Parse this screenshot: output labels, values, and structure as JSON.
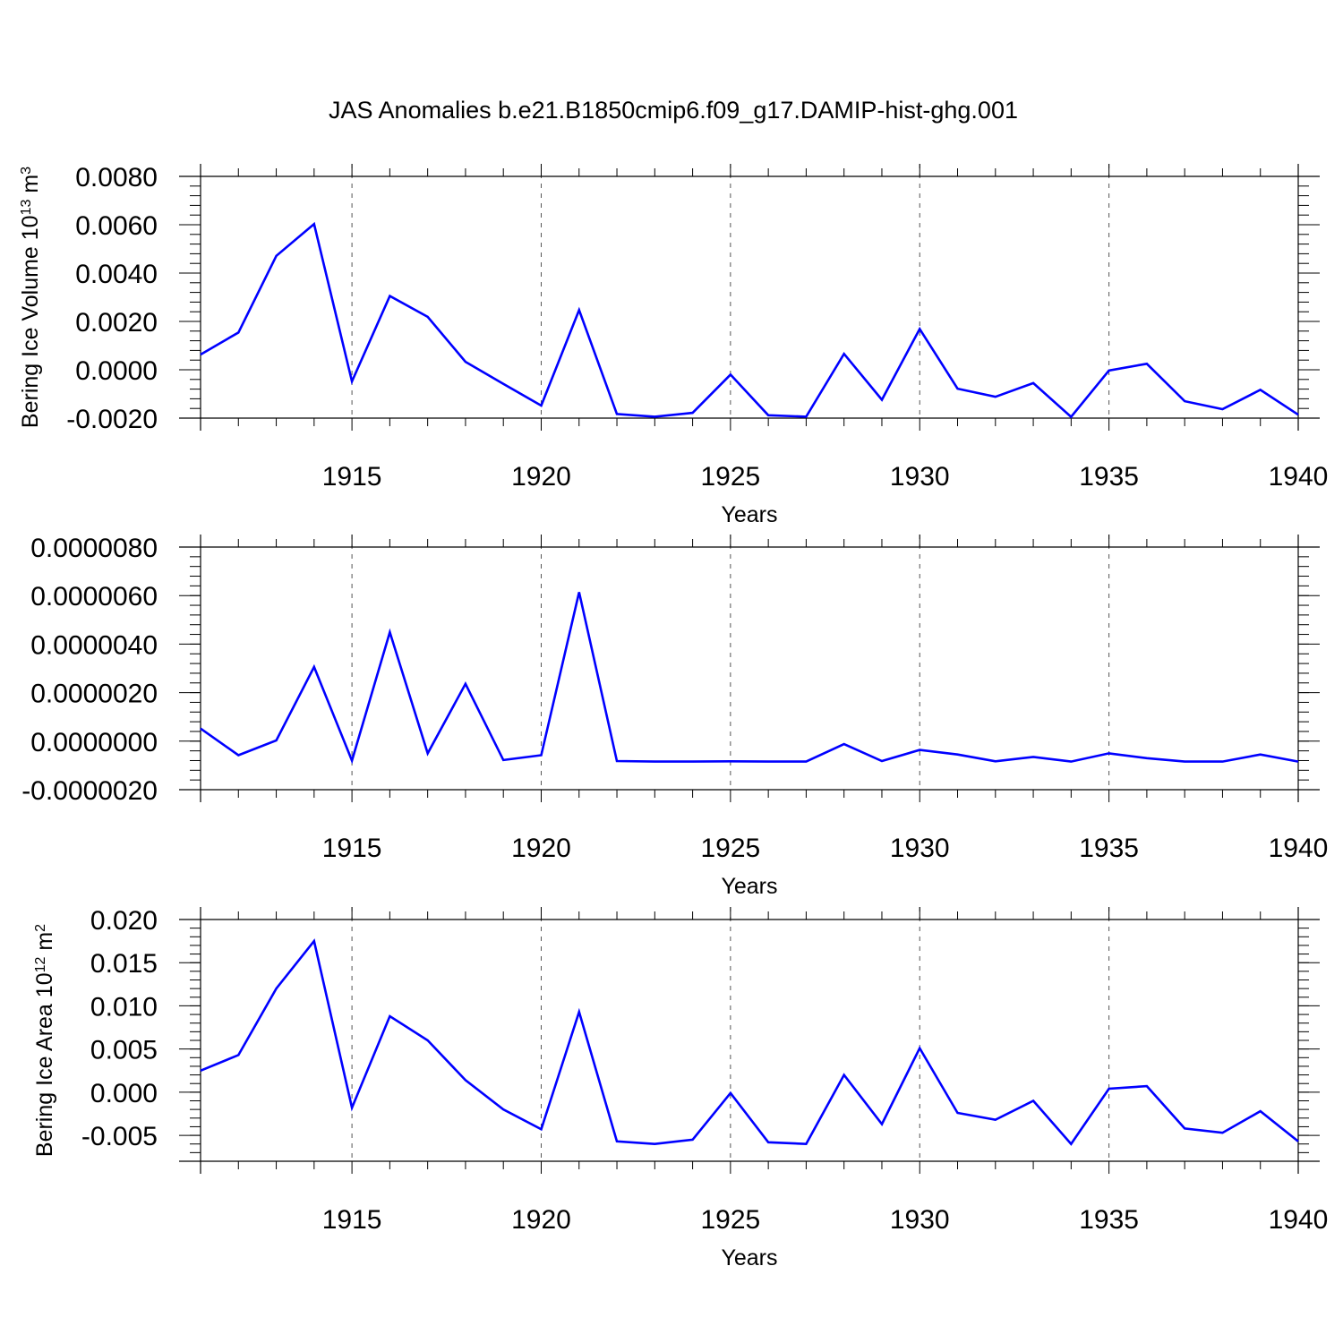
{
  "title": "JAS Anomalies b.e21.B1850cmip6.f09_g17.DAMIP-hist-ghg.001",
  "colors": {
    "line": "#0000ff",
    "grid": "#555555",
    "axes": "#000000"
  },
  "chart_data": [
    {
      "type": "line",
      "ylabel": "Bering Ice Volume 10",
      "ylabel_sup": "13",
      "ylabel_unit": " m",
      "ylabel_unit_sup": "3",
      "xlabel": "Years",
      "xlim": [
        1911,
        1940
      ],
      "ylim": [
        -0.002,
        0.008
      ],
      "xticks": [
        1915,
        1920,
        1925,
        1930,
        1935,
        1940
      ],
      "xtick_labels": [
        "1915",
        "1920",
        "1925",
        "1930",
        "1935",
        "1940"
      ],
      "yticks": [
        -0.002,
        0,
        0.002,
        0.004,
        0.006,
        0.008
      ],
      "ytick_labels": [
        "-0.0020",
        "0.0000",
        "0.0020",
        "0.0040",
        "0.0060",
        "0.0080"
      ],
      "grid": "vertical dashed at major x ticks",
      "x": [
        1911,
        1912,
        1913,
        1914,
        1915,
        1916,
        1917,
        1918,
        1919,
        1920,
        1921,
        1922,
        1923,
        1924,
        1925,
        1926,
        1927,
        1928,
        1929,
        1930,
        1931,
        1932,
        1933,
        1934,
        1935,
        1936,
        1937,
        1938,
        1939,
        1940
      ],
      "y": [
        0.00063,
        0.00154,
        0.00471,
        0.00603,
        -0.00048,
        0.00305,
        0.00219,
        0.00033,
        -0.00058,
        -0.00148,
        0.00247,
        -0.00183,
        -0.00194,
        -0.00178,
        -0.0002,
        -0.00188,
        -0.00194,
        0.00066,
        -0.00124,
        0.00169,
        -0.00078,
        -0.00112,
        -0.00055,
        -0.00195,
        -3e-05,
        0.00025,
        -0.0013,
        -0.00163,
        -0.00083,
        -0.00186
      ]
    },
    {
      "type": "line",
      "ylabel": "",
      "xlabel": "Years",
      "xlim": [
        1911,
        1940
      ],
      "ylim": [
        -2e-06,
        8e-06
      ],
      "xticks": [
        1915,
        1920,
        1925,
        1930,
        1935,
        1940
      ],
      "xtick_labels": [
        "1915",
        "1920",
        "1925",
        "1930",
        "1935",
        "1940"
      ],
      "yticks": [
        -2e-06,
        0,
        2e-06,
        4e-06,
        6e-06,
        8e-06
      ],
      "ytick_labels": [
        "-0.0000020",
        "0.0000000",
        "0.0000020",
        "0.0000040",
        "0.0000060",
        "0.0000080"
      ],
      "grid": "vertical dashed at major x ticks",
      "x": [
        1911,
        1912,
        1913,
        1914,
        1915,
        1916,
        1917,
        1918,
        1919,
        1920,
        1921,
        1922,
        1923,
        1924,
        1925,
        1926,
        1927,
        1928,
        1929,
        1930,
        1931,
        1932,
        1933,
        1934,
        1935,
        1936,
        1937,
        1938,
        1939,
        1940
      ],
      "y": [
        5.2e-07,
        -5.8e-07,
        3e-08,
        3.06e-06,
        -8e-07,
        4.49e-06,
        -5e-07,
        2.36e-06,
        -7.8e-07,
        -5.8e-07,
        6.14e-06,
        -8.2e-07,
        -8.4e-07,
        -8.4e-07,
        -8.3e-07,
        -8.4e-07,
        -8.4e-07,
        -1.2e-07,
        -8.2e-07,
        -3.6e-07,
        -5.5e-07,
        -8.3e-07,
        -6.5e-07,
        -8.4e-07,
        -5e-07,
        -7e-07,
        -8.4e-07,
        -8.4e-07,
        -5.5e-07,
        -8.4e-07
      ]
    },
    {
      "type": "line",
      "ylabel": "Bering Ice Area 10",
      "ylabel_sup": "12",
      "ylabel_unit": " m",
      "ylabel_unit_sup": "2",
      "xlabel": "Years",
      "xlim": [
        1911,
        1940
      ],
      "ylim": [
        -0.008,
        0.02
      ],
      "xticks": [
        1915,
        1920,
        1925,
        1930,
        1935,
        1940
      ],
      "xtick_labels": [
        "1915",
        "1920",
        "1925",
        "1930",
        "1935",
        "1940"
      ],
      "yticks": [
        -0.005,
        0,
        0.005,
        0.01,
        0.015,
        0.02
      ],
      "ytick_labels": [
        "-0.005",
        "0.000",
        "0.005",
        "0.010",
        "0.015",
        "0.020"
      ],
      "grid": "vertical dashed at major x ticks",
      "x": [
        1911,
        1912,
        1913,
        1914,
        1915,
        1916,
        1917,
        1918,
        1919,
        1920,
        1921,
        1922,
        1923,
        1924,
        1925,
        1926,
        1927,
        1928,
        1929,
        1930,
        1931,
        1932,
        1933,
        1934,
        1935,
        1936,
        1937,
        1938,
        1939,
        1940
      ],
      "y": [
        0.0025,
        0.0043,
        0.012,
        0.0175,
        -0.0018,
        0.0088,
        0.006,
        0.0014,
        -0.002,
        -0.0043,
        0.0093,
        -0.0057,
        -0.006,
        -0.0055,
        -0.0001,
        -0.0058,
        -0.006,
        0.002,
        -0.0037,
        0.0051,
        -0.0024,
        -0.0032,
        -0.001,
        -0.006,
        0.0004,
        0.0007,
        -0.0042,
        -0.0047,
        -0.0022,
        -0.0057
      ]
    }
  ]
}
